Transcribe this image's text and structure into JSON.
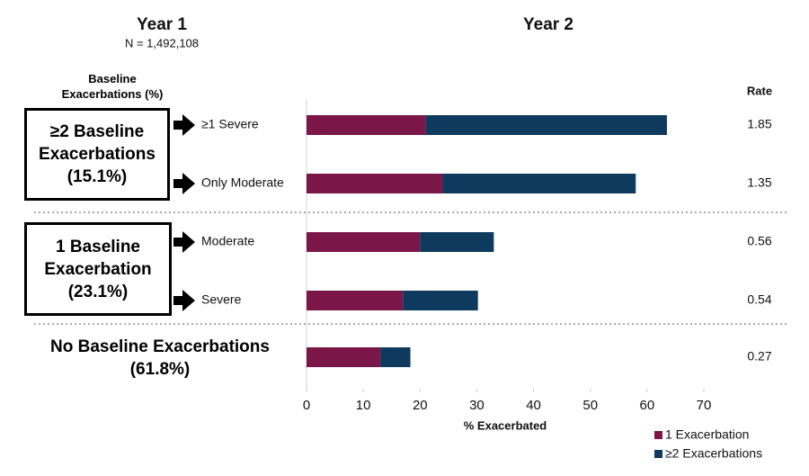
{
  "chart_data": {
    "type": "bar",
    "orientation": "horizontal",
    "stacked": true,
    "header_left": "Year 1",
    "header_left_sub": "N = 1,492,108",
    "header_right": "Year 2",
    "baseline_header": "Baseline Exacerbations (%)",
    "groups": [
      "≥2 Baseline Exacerbations (15.1%)",
      "1 Baseline Exacerbation (23.1%)",
      "No Baseline Exacerbations (61.8%)"
    ],
    "categories": [
      "≥1 Severe",
      "Only Moderate",
      "Moderate",
      "Severe",
      null
    ],
    "series": [
      {
        "name": "1 Exacerbation",
        "color": "#7b1648",
        "values": [
          21,
          24,
          20,
          17,
          13
        ]
      },
      {
        "name": "≥2 Exacerbations",
        "color": "#0e3a5e",
        "values": [
          42.5,
          34,
          13,
          13.2,
          5.3
        ]
      }
    ],
    "rate_label": "Rate",
    "rates": [
      1.85,
      1.35,
      0.56,
      0.54,
      0.27
    ],
    "xlabel": "% Exacerbated",
    "xlim": [
      0,
      70
    ],
    "xticks": [
      0,
      10,
      20,
      30,
      40,
      50,
      60,
      70
    ]
  }
}
